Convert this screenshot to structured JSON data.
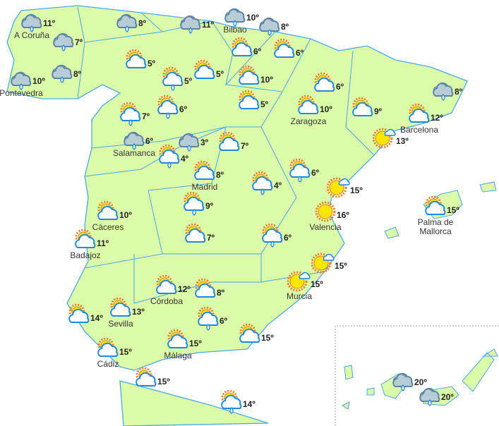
{
  "colors": {
    "land": "#dcfba8",
    "border": "#4aa8f0",
    "sun": "#ffe600",
    "sun_ray": "#f07a1a",
    "rain_cloud": "#b8ccd6",
    "cloud_outline": "#1e88e5"
  },
  "forecasts": [
    {
      "icon": "rain",
      "temp": "11º",
      "city": "A Coruña"
    },
    {
      "icon": "rain",
      "temp": "7º",
      "city": ""
    },
    {
      "icon": "rain",
      "temp": "10º",
      "city": "Pontevedra"
    },
    {
      "icon": "rain",
      "temp": "8º",
      "city": ""
    },
    {
      "icon": "rain",
      "temp": "8º",
      "city": ""
    },
    {
      "icon": "rain",
      "temp": "11º",
      "city": ""
    },
    {
      "icon": "rain",
      "temp": "10º",
      "city": "Bilbao"
    },
    {
      "icon": "rain",
      "temp": "8º",
      "city": ""
    },
    {
      "icon": "partly-cloudy",
      "temp": "5º",
      "city": ""
    },
    {
      "icon": "partly-cloudy-rain",
      "temp": "5º",
      "city": ""
    },
    {
      "icon": "partly-cloudy",
      "temp": "5º",
      "city": ""
    },
    {
      "icon": "partly-cloudy",
      "temp": "6º",
      "city": ""
    },
    {
      "icon": "partly-cloudy",
      "temp": "6º",
      "city": ""
    },
    {
      "icon": "partly-cloudy",
      "temp": "10º",
      "city": ""
    },
    {
      "icon": "partly-cloudy",
      "temp": "5º",
      "city": ""
    },
    {
      "icon": "partly-cloudy",
      "temp": "6º",
      "city": ""
    },
    {
      "icon": "partly-cloudy",
      "temp": "10º",
      "city": "Zaragoza"
    },
    {
      "icon": "partly-cloudy",
      "temp": "9º",
      "city": ""
    },
    {
      "icon": "partly-cloudy",
      "temp": "12º",
      "city": "Barcelona"
    },
    {
      "icon": "rain",
      "temp": "8º",
      "city": ""
    },
    {
      "icon": "sunny-cloud",
      "temp": "13º",
      "city": ""
    },
    {
      "icon": "partly-cloudy-rain",
      "temp": "7º",
      "city": ""
    },
    {
      "icon": "partly-cloudy-rain",
      "temp": "6º",
      "city": ""
    },
    {
      "icon": "rain",
      "temp": "6º",
      "city": "Salamanca"
    },
    {
      "icon": "partly-cloudy-rain",
      "temp": "4º",
      "city": ""
    },
    {
      "icon": "rain",
      "temp": "3º",
      "city": ""
    },
    {
      "icon": "partly-cloudy",
      "temp": "7º",
      "city": ""
    },
    {
      "icon": "partly-cloudy",
      "temp": "8º",
      "city": "Madrid"
    },
    {
      "icon": "partly-cloudy-rain",
      "temp": "4º",
      "city": ""
    },
    {
      "icon": "partly-cloudy-rain",
      "temp": "6º",
      "city": ""
    },
    {
      "icon": "sunny-cloud",
      "temp": "15º",
      "city": ""
    },
    {
      "icon": "sunny",
      "temp": "16º",
      "city": "Valencia"
    },
    {
      "icon": "partly-cloudy-rain",
      "temp": "9º",
      "city": ""
    },
    {
      "icon": "partly-cloudy",
      "temp": "10º",
      "city": "Cáceres"
    },
    {
      "icon": "partly-cloudy",
      "temp": "11º",
      "city": "Badajoz"
    },
    {
      "icon": "partly-cloudy",
      "temp": "7º",
      "city": ""
    },
    {
      "icon": "partly-cloudy-rain",
      "temp": "6º",
      "city": ""
    },
    {
      "icon": "sunny-cloud",
      "temp": "15º",
      "city": ""
    },
    {
      "icon": "sunny-cloud",
      "temp": "15º",
      "city": "Murcia"
    },
    {
      "icon": "partly-cloudy",
      "temp": "12º",
      "city": "Córdoba"
    },
    {
      "icon": "partly-cloudy",
      "temp": "8º",
      "city": ""
    },
    {
      "icon": "partly-cloudy-rain",
      "temp": "6º",
      "city": ""
    },
    {
      "icon": "partly-cloudy",
      "temp": "14º",
      "city": ""
    },
    {
      "icon": "partly-cloudy",
      "temp": "13º",
      "city": "Sevilla"
    },
    {
      "icon": "partly-cloudy",
      "temp": "15º",
      "city": "Cádiz"
    },
    {
      "icon": "partly-cloudy",
      "temp": "15º",
      "city": "Málaga"
    },
    {
      "icon": "partly-cloudy",
      "temp": "15º",
      "city": ""
    },
    {
      "icon": "partly-cloudy",
      "temp": "15º",
      "city": ""
    },
    {
      "icon": "partly-cloudy-rain",
      "temp": "14º",
      "city": ""
    },
    {
      "icon": "partly-cloudy",
      "temp": "15º",
      "city": "Palma de Mallorca"
    },
    {
      "icon": "rain",
      "temp": "20º",
      "city": ""
    },
    {
      "icon": "rain",
      "temp": "20º",
      "city": ""
    }
  ]
}
